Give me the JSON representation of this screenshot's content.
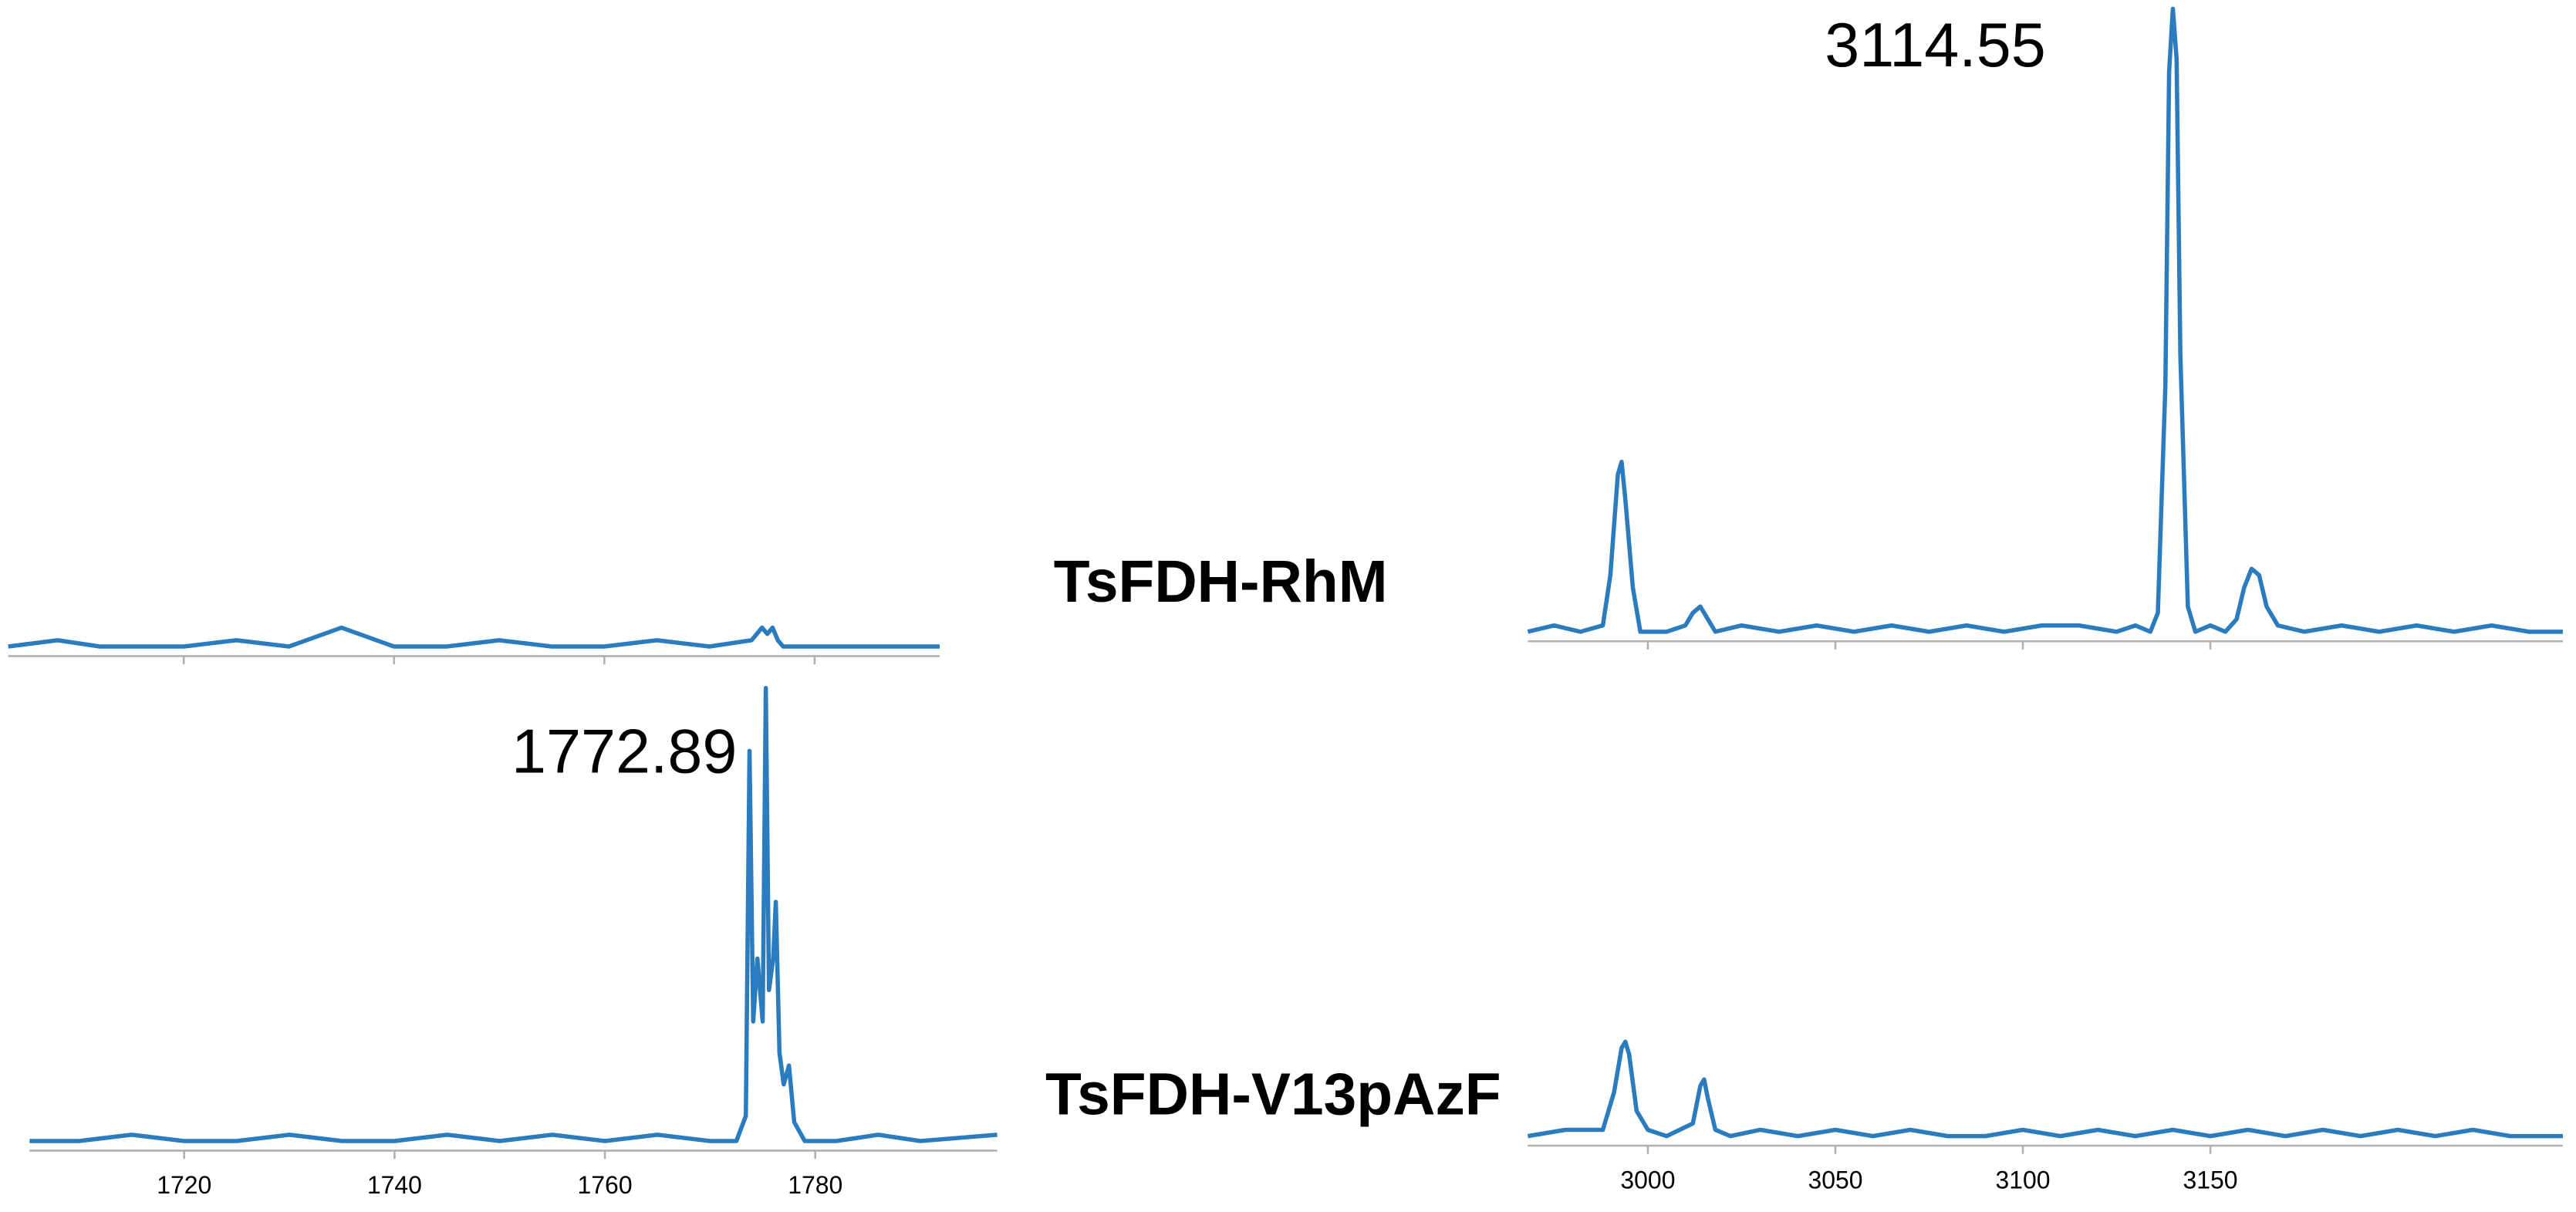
{
  "chart_data": [
    {
      "type": "line",
      "color": "#2b7bbf",
      "xlim": [
        1703.3,
        1791.9
      ],
      "ylim": [
        0,
        100
      ],
      "xticks": [
        1720,
        1740,
        1760,
        1780
      ],
      "show_xtick_labels": false,
      "x": [
        1703.3,
        1708,
        1712,
        1716,
        1720,
        1725,
        1730,
        1735,
        1740,
        1745,
        1750,
        1755,
        1760,
        1765,
        1770,
        1774,
        1775,
        1775.5,
        1776,
        1776.5,
        1777,
        1780,
        1785,
        1791.9
      ],
      "values": [
        1,
        2,
        1,
        1,
        1,
        2,
        1,
        4,
        1,
        1,
        2,
        1,
        1,
        2,
        1,
        2,
        4,
        3,
        4,
        2,
        1,
        1,
        1,
        1
      ]
    },
    {
      "type": "line",
      "color": "#2b7bbf",
      "title": "TsFDH-RhM",
      "annotation": "3114.55",
      "xlim": [
        2968,
        3244
      ],
      "ylim": [
        0,
        100
      ],
      "xticks": [
        3000,
        3050,
        3100,
        3150
      ],
      "show_xtick_labels": false,
      "x": [
        2968,
        2975,
        2982,
        2988,
        2990,
        2992,
        2993,
        2994,
        2996,
        2998,
        3005,
        3010,
        3012,
        3014,
        3016,
        3018,
        3025,
        3035,
        3045,
        3055,
        3065,
        3075,
        3085,
        3095,
        3105,
        3115,
        3125,
        3130,
        3134,
        3136,
        3138,
        3139,
        3140,
        3141,
        3142,
        3144,
        3146,
        3150,
        3154,
        3157,
        3159,
        3161,
        3163,
        3165,
        3168,
        3175,
        3185,
        3195,
        3205,
        3215,
        3225,
        3235,
        3244
      ],
      "values": [
        1,
        2,
        1,
        2,
        10,
        26,
        28,
        22,
        8,
        1,
        1,
        2,
        4,
        5,
        3,
        1,
        2,
        1,
        2,
        1,
        2,
        1,
        2,
        1,
        2,
        2,
        1,
        2,
        1,
        4,
        40,
        90,
        100,
        92,
        45,
        5,
        1,
        2,
        1,
        3,
        8,
        11,
        10,
        5,
        2,
        1,
        2,
        1,
        2,
        1,
        2,
        1,
        1
      ]
    },
    {
      "type": "line",
      "color": "#2b7bbf",
      "annotation": "1772.89",
      "xlim": [
        1705.3,
        1797.3
      ],
      "ylim": [
        0,
        100
      ],
      "xticks": [
        1720,
        1740,
        1760,
        1780
      ],
      "show_xtick_labels": true,
      "x": [
        1705.3,
        1710,
        1715,
        1720,
        1725,
        1730,
        1735,
        1740,
        1745,
        1750,
        1755,
        1760,
        1765,
        1770,
        1772.5,
        1773.4,
        1773.75,
        1774.1,
        1774.5,
        1775.0,
        1775.3,
        1775.6,
        1776.0,
        1776.25,
        1776.6,
        1777.0,
        1777.5,
        1778,
        1779,
        1782,
        1786,
        1790,
        1797.3
      ],
      "values": [
        1,
        1,
        2,
        1,
        1,
        2,
        1,
        1,
        2,
        1,
        2,
        1,
        2,
        1,
        1,
        5,
        63,
        20,
        30,
        20,
        73,
        25,
        30,
        39,
        15,
        10,
        13,
        4,
        1,
        1,
        2,
        1,
        2
      ]
    },
    {
      "type": "line",
      "color": "#2b7bbf",
      "title": "TsFDH-V13pAzF",
      "xlim": [
        2968,
        3244
      ],
      "ylim": [
        0,
        100
      ],
      "xticks": [
        3000,
        3050,
        3100,
        3150
      ],
      "show_xtick_labels": true,
      "x": [
        2968,
        2978,
        2988,
        2991,
        2993,
        2994,
        2995,
        2997,
        3000,
        3005,
        3012,
        3014,
        3015,
        3016,
        3018,
        3022,
        3030,
        3040,
        3050,
        3060,
        3070,
        3080,
        3090,
        3100,
        3110,
        3120,
        3130,
        3140,
        3150,
        3160,
        3170,
        3180,
        3190,
        3200,
        3210,
        3220,
        3230,
        3244
      ],
      "values": [
        1,
        2,
        2,
        8,
        15,
        16,
        14,
        5,
        2,
        1,
        3,
        9,
        10,
        7,
        2,
        1,
        2,
        1,
        2,
        1,
        2,
        1,
        1,
        2,
        1,
        2,
        1,
        2,
        1,
        2,
        1,
        2,
        1,
        2,
        1,
        2,
        1,
        1
      ]
    }
  ]
}
